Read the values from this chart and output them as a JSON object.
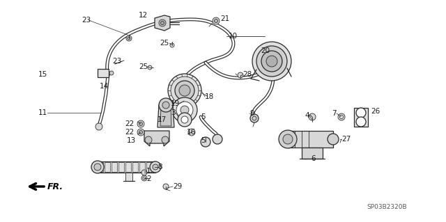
{
  "bg_color": "#ffffff",
  "line_color": "#2a2a2a",
  "text_color": "#1a1a1a",
  "diagram_code": "SP03B2320B",
  "figsize": [
    6.4,
    3.19
  ],
  "dpi": 100,
  "labels": [
    [
      "23",
      135,
      28,
      "left"
    ],
    [
      "12",
      213,
      22,
      "left"
    ],
    [
      "21",
      302,
      25,
      "right"
    ],
    [
      "10",
      325,
      52,
      "left"
    ],
    [
      "25",
      247,
      65,
      "right"
    ],
    [
      "20",
      372,
      75,
      "left"
    ],
    [
      "23",
      178,
      87,
      "right"
    ],
    [
      "25",
      215,
      95,
      "right"
    ],
    [
      "28",
      345,
      105,
      "left"
    ],
    [
      "15",
      68,
      105,
      "left"
    ],
    [
      "14",
      140,
      122,
      "left"
    ],
    [
      "18",
      297,
      138,
      "left"
    ],
    [
      "9",
      362,
      162,
      "left"
    ],
    [
      "19",
      265,
      148,
      "right"
    ],
    [
      "3",
      254,
      158,
      "right"
    ],
    [
      "11",
      70,
      160,
      "right"
    ],
    [
      "22",
      195,
      175,
      "right"
    ],
    [
      "22",
      195,
      188,
      "right"
    ],
    [
      "17",
      224,
      173,
      "left"
    ],
    [
      "5",
      288,
      170,
      "left"
    ],
    [
      "16",
      271,
      188,
      "left"
    ],
    [
      "13",
      197,
      200,
      "right"
    ],
    [
      "5",
      288,
      200,
      "left"
    ],
    [
      "4",
      446,
      168,
      "left"
    ],
    [
      "7",
      488,
      165,
      "left"
    ],
    [
      "26",
      510,
      160,
      "left"
    ],
    [
      "27",
      490,
      198,
      "left"
    ],
    [
      "6",
      450,
      220,
      "left"
    ],
    [
      "1",
      207,
      244,
      "left"
    ],
    [
      "8",
      222,
      238,
      "left"
    ],
    [
      "2",
      207,
      254,
      "left"
    ],
    [
      "29",
      233,
      268,
      "left"
    ]
  ]
}
